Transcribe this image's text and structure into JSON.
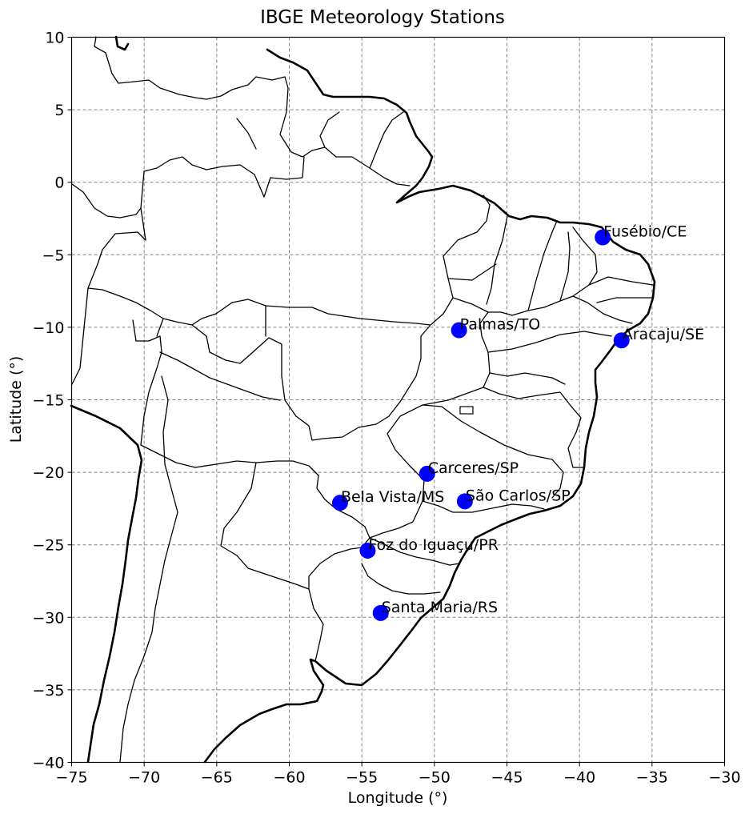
{
  "chart_data": {
    "type": "scatter",
    "title": "IBGE Meteorology Stations",
    "xlabel": "Longitude (°)",
    "ylabel": "Latitude (°)",
    "xlim": [
      -75,
      -30
    ],
    "ylim": [
      -40,
      10
    ],
    "xticks": [
      -75,
      -70,
      -65,
      -60,
      -55,
      -50,
      -45,
      -40,
      -35,
      -30
    ],
    "yticks": [
      -40,
      -35,
      -30,
      -25,
      -20,
      -15,
      -10,
      -5,
      0,
      5,
      10
    ],
    "grid": true,
    "marker_color": "#0000ff",
    "points": [
      {
        "label": "Fusébio/CE",
        "lon": -38.4,
        "lat": -3.8
      },
      {
        "label": "Palmas/TO",
        "lon": -48.3,
        "lat": -10.2
      },
      {
        "label": "Aracaju/SE",
        "lon": -37.1,
        "lat": -10.9
      },
      {
        "label": "Carceres/SP",
        "lon": -50.5,
        "lat": -20.1
      },
      {
        "label": "Bela Vista/MS",
        "lon": -56.5,
        "lat": -22.1
      },
      {
        "label": "São Carlos/SP",
        "lon": -47.9,
        "lat": -22.0
      },
      {
        "label": "Foz do Iguaçu/PR",
        "lon": -54.6,
        "lat": -25.4
      },
      {
        "label": "Santa Maria/RS",
        "lon": -53.7,
        "lat": -29.7
      }
    ]
  }
}
